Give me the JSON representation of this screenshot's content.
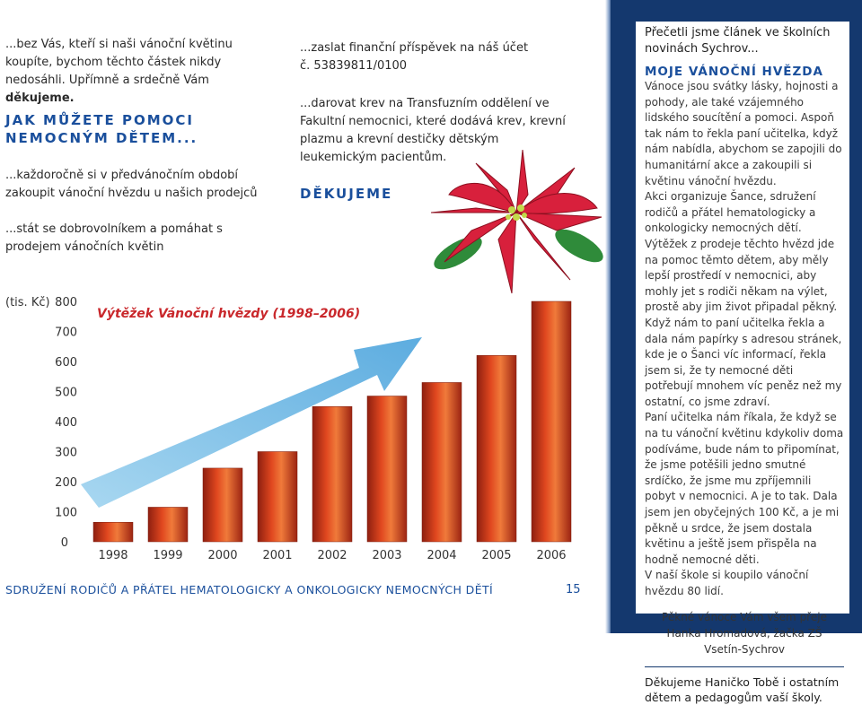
{
  "left": {
    "intro": "...bez Vás, kteří si naši vánoční květinu koupíte, bychom těchto částek nikdy nedosáhli. Upřímně a srdečně Vám ",
    "intro_bold": "děkujeme.",
    "heading_line1": "JAK MŮŽETE POMOCI",
    "heading_line2": "NEMOCNÝM DĚTEM...",
    "item1": "...každoročně si v předvánočním období zakoupit vánoční hvězdu u našich prodejců",
    "item2": "...stát se dobrovolníkem a pomáhat s prodejem vánočních květin"
  },
  "middle": {
    "item3_line1": "...zaslat finanční příspěvek na náš účet",
    "item3_line2": "č. 53839811/0100",
    "item4": "...darovat krev na Transfuzním oddělení ve Fakultní nemocnici, které dodává krev, krevní plazmu a krevní destičky dětským leukemickým pacientům.",
    "thanks": "DĚKUJEME"
  },
  "chart_data": {
    "type": "bar",
    "title": "Výtěžek Vánoční hvězdy (1998–2006)",
    "ylabel": "(tis. Kč)",
    "ylim": [
      0,
      800
    ],
    "yticks": [
      0,
      100,
      200,
      300,
      400,
      500,
      600,
      700,
      800
    ],
    "categories": [
      "1998",
      "1999",
      "2000",
      "2001",
      "2002",
      "2003",
      "2004",
      "2005",
      "2006"
    ],
    "values": [
      65,
      115,
      245,
      300,
      450,
      485,
      530,
      620,
      800
    ],
    "bar_color": "#d9441e"
  },
  "footer": {
    "title": "SDRUŽENÍ RODIČŮ A PŘÁTEL HEMATOLOGICKY A ONKOLOGICKY NEMOCNÝCH DĚTÍ",
    "page_number": "15"
  },
  "sidebar": {
    "intro": "Přečetli jsme článek ve školních novinách Sychrov...",
    "heading": "MOJE VÁNOČNÍ HVĚZDA",
    "body": [
      "Vánoce jsou svátky lásky, hojnosti a pohody, ale také vzájemného lidského soucítění a pomoci. Aspoň tak nám to řekla paní učitelka, když nám nabídla, abychom se zapojili do humanitární akce a zakoupili si květinu vánoční hvězdu.",
      "Akci organizuje Šance, sdružení rodičů a přátel hematologicky a onkologicky nemocných dětí. Výtěžek z prodeje těchto hvězd jde na pomoc těmto dětem, aby měly lepší prostředí v nemocnici, aby mohly jet s rodiči někam na výlet, prostě aby jim život připadal pěkný.",
      "Když nám to paní učitelka řekla a dala nám papírky s adresou stránek, kde je o Šanci víc informací, řekla jsem si, že ty nemocné děti potřebují mnohem víc peněz než my ostatní, co jsme zdraví.",
      "Paní učitelka nám říkala, že když se na tu vánoční květinu kdykoliv doma podíváme, bude nám to připomínat, že jsme potěšili jedno smutné srdíčko, že jsme mu zpříjemnili pobyt v nemocnici. A je to tak. Dala jsem jen obyčejných 100 Kč, a je mi pěkně u srdce, že jsem dostala květinu a ještě jsem přispěla na hodně nemocné děti.",
      "V naší škole si koupilo vánoční hvězdu 80 lidí."
    ],
    "signature": "Pěkné vánoce Vám všem přeje Hanka Hromadová, žačka ZŠ Vsetín-Sychrov",
    "thanks": "Děkujeme Haničko Tobě i ostatním dětem a pedagogům vaší školy."
  }
}
